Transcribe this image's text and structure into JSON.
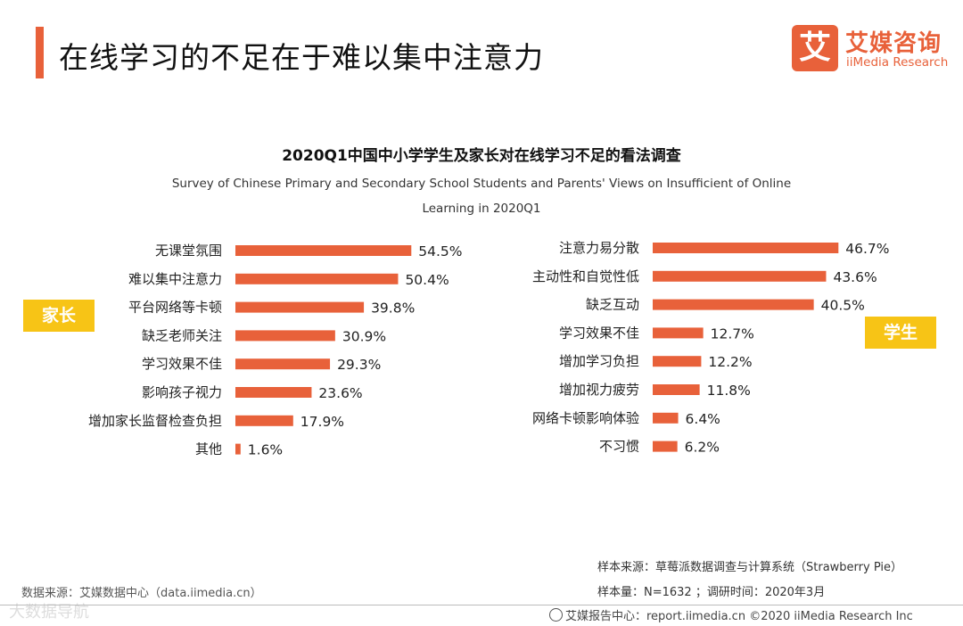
{
  "header": {
    "title": "在线学习的不足在于难以集中注意力",
    "accent_color": "#e8613a"
  },
  "logo": {
    "mark": "艾",
    "cn": "艾媒咨询",
    "en": "iiMedia Research"
  },
  "chart_data": [
    {
      "type": "bar",
      "orientation": "horizontal",
      "title": "2020Q1中国中小学学生及家长对在线学习不足的看法调查",
      "subtitle_line1": "Survey of Chinese Primary and Secondary School Students and Parents' Views on Insufficient of Online",
      "subtitle_line2": "Learning in 2020Q1",
      "group_label": "家长",
      "categories": [
        "无课堂氛围",
        "难以集中注意力",
        "平台网络等卡顿",
        "缺乏老师关注",
        "学习效果不佳",
        "影响孩子视力",
        "增加家长监督检查负担",
        "其他"
      ],
      "values": [
        54.5,
        50.4,
        39.8,
        30.9,
        29.3,
        23.6,
        17.9,
        1.6
      ],
      "labels": [
        "54.5%",
        "50.4%",
        "39.8%",
        "30.9%",
        "29.3%",
        "23.6%",
        "17.9%",
        "1.6%"
      ],
      "unit": "%",
      "color": "#e8613a"
    },
    {
      "type": "bar",
      "orientation": "horizontal",
      "group_label": "学生",
      "categories": [
        "注意力易分散",
        "主动性和自觉性低",
        "缺乏互动",
        "学习效果不佳",
        "增加学习负担",
        "增加视力疲劳",
        "网络卡顿影响体验",
        "不习惯"
      ],
      "values": [
        46.7,
        43.6,
        40.5,
        12.7,
        12.2,
        11.8,
        6.4,
        6.2
      ],
      "labels": [
        "46.7%",
        "43.6%",
        "40.5%",
        "12.7%",
        "12.2%",
        "11.8%",
        "6.4%",
        "6.2%"
      ],
      "unit": "%",
      "color": "#e8613a"
    }
  ],
  "tags": {
    "parents": "家长",
    "students": "学生",
    "color": "#f7c416"
  },
  "footer": {
    "sample_source": "样本来源：草莓派数据调查与计算系统（Strawberry  Pie）",
    "sample_size": "样本量：N=1632 ；调研时间：2020年3月",
    "data_source": "数据来源：艾媒数据中心（data.iimedia.cn）",
    "report_center": "艾媒报告中心：report.iimedia.cn  ©2020  iiMedia Research  Inc",
    "watermark": "大数据导航"
  }
}
